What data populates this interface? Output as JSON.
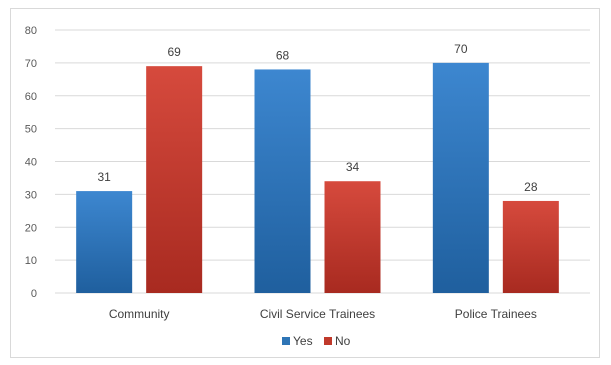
{
  "chart_data": {
    "type": "bar",
    "categories": [
      "Community",
      "Civil Service Trainees",
      "Police Trainees"
    ],
    "series": [
      {
        "name": "Yes",
        "values": [
          31,
          68,
          70
        ],
        "color": "#2e75b6"
      },
      {
        "name": "No",
        "values": [
          69,
          34,
          28
        ],
        "color": "#c0392b"
      }
    ],
    "ylim": [
      0,
      80
    ],
    "yticks": [
      0,
      10,
      20,
      30,
      40,
      50,
      60,
      70,
      80
    ],
    "grid": true,
    "legend_position": "bottom",
    "title": "",
    "xlabel": "",
    "ylabel": ""
  }
}
